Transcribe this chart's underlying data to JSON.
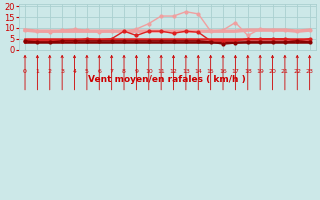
{
  "x": [
    0,
    1,
    2,
    3,
    4,
    5,
    6,
    7,
    8,
    9,
    10,
    11,
    12,
    13,
    14,
    15,
    16,
    17,
    18,
    19,
    20,
    21,
    22,
    23
  ],
  "series": [
    {
      "name": "light_flat",
      "y": [
        9.0,
        8.5,
        8.5,
        8.5,
        8.5,
        8.5,
        8.5,
        8.5,
        8.5,
        8.5,
        8.5,
        8.5,
        8.5,
        8.5,
        8.5,
        8.5,
        8.5,
        8.5,
        9.0,
        9.0,
        9.0,
        9.0,
        8.5,
        9.0
      ],
      "color": "#f0a0a0",
      "lw": 2.5,
      "marker": null,
      "zorder": 2
    },
    {
      "name": "light_variable",
      "y": [
        9.0,
        8.5,
        8.0,
        9.0,
        9.5,
        9.0,
        8.0,
        8.5,
        8.5,
        9.5,
        12.0,
        15.5,
        15.5,
        17.5,
        16.5,
        8.5,
        9.0,
        12.5,
        6.5,
        9.5,
        9.0,
        9.0,
        8.5,
        9.0
      ],
      "color": "#f0a0a0",
      "lw": 1.0,
      "marker": "o",
      "ms": 2.0,
      "zorder": 3
    },
    {
      "name": "med_flat",
      "y": [
        5.0,
        5.0,
        5.0,
        5.0,
        5.0,
        5.0,
        5.0,
        5.0,
        5.0,
        5.0,
        5.0,
        5.0,
        5.0,
        5.0,
        5.0,
        5.0,
        5.0,
        5.0,
        5.0,
        5.0,
        5.0,
        5.0,
        5.0,
        5.0
      ],
      "color": "#dd2020",
      "lw": 1.8,
      "marker": null,
      "zorder": 4
    },
    {
      "name": "med_variable",
      "y": [
        4.0,
        4.0,
        4.0,
        4.0,
        4.0,
        5.0,
        4.5,
        5.0,
        8.5,
        6.5,
        8.5,
        8.5,
        7.5,
        8.5,
        8.0,
        4.0,
        4.0,
        4.0,
        5.0,
        5.0,
        5.0,
        5.0,
        4.0,
        5.0
      ],
      "color": "#dd2020",
      "lw": 1.0,
      "marker": "o",
      "ms": 2.0,
      "zorder": 5
    },
    {
      "name": "dark_flat",
      "y": [
        3.5,
        3.5,
        3.5,
        3.5,
        3.5,
        3.5,
        3.5,
        3.5,
        3.5,
        3.5,
        3.5,
        3.5,
        3.5,
        3.5,
        3.5,
        3.5,
        3.5,
        3.5,
        3.5,
        3.5,
        3.5,
        3.5,
        3.5,
        3.5
      ],
      "color": "#880000",
      "lw": 1.8,
      "marker": null,
      "zorder": 4
    },
    {
      "name": "dark_variable",
      "y": [
        4.0,
        3.5,
        3.5,
        4.0,
        4.0,
        4.0,
        4.0,
        4.0,
        4.0,
        4.0,
        4.0,
        4.0,
        4.0,
        4.0,
        4.0,
        3.5,
        2.5,
        3.0,
        3.5,
        3.5,
        3.5,
        3.5,
        4.0,
        3.5
      ],
      "color": "#880000",
      "lw": 1.0,
      "marker": "o",
      "ms": 2.0,
      "zorder": 5
    }
  ],
  "xlabel": "Vent moyen/en rafales ( km/h )",
  "xlim": [
    -0.5,
    23.5
  ],
  "ylim": [
    0,
    21
  ],
  "yticks": [
    0,
    5,
    10,
    15,
    20
  ],
  "xticks": [
    0,
    1,
    2,
    3,
    4,
    5,
    6,
    7,
    8,
    9,
    10,
    11,
    12,
    13,
    14,
    15,
    16,
    17,
    18,
    19,
    20,
    21,
    22,
    23
  ],
  "bg_color": "#cce8e8",
  "grid_color": "#aad0d0",
  "tick_color": "#cc0000",
  "label_color": "#cc0000",
  "arrow_color": "#cc0000"
}
